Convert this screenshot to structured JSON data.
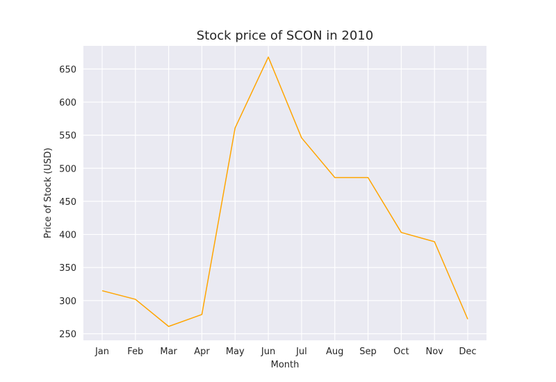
{
  "chart_data": {
    "type": "line",
    "title": "Stock price of SCON in 2010",
    "xlabel": "Month",
    "ylabel": "Price of Stock (USD)",
    "categories": [
      "Jan",
      "Feb",
      "Mar",
      "Apr",
      "May",
      "Jun",
      "Jul",
      "Aug",
      "Sep",
      "Oct",
      "Nov",
      "Dec"
    ],
    "series": [
      {
        "values": [
          315,
          302,
          261,
          279,
          561,
          668,
          546,
          486,
          486,
          403,
          389,
          272
        ]
      }
    ],
    "yticks": [
      250,
      300,
      350,
      400,
      450,
      500,
      550,
      600,
      650
    ],
    "ylim": [
      240,
      685
    ],
    "grid": true,
    "colors": {
      "line": "#ffa500",
      "plot_bg": "#eaeaf2",
      "grid": "#ffffff"
    }
  }
}
